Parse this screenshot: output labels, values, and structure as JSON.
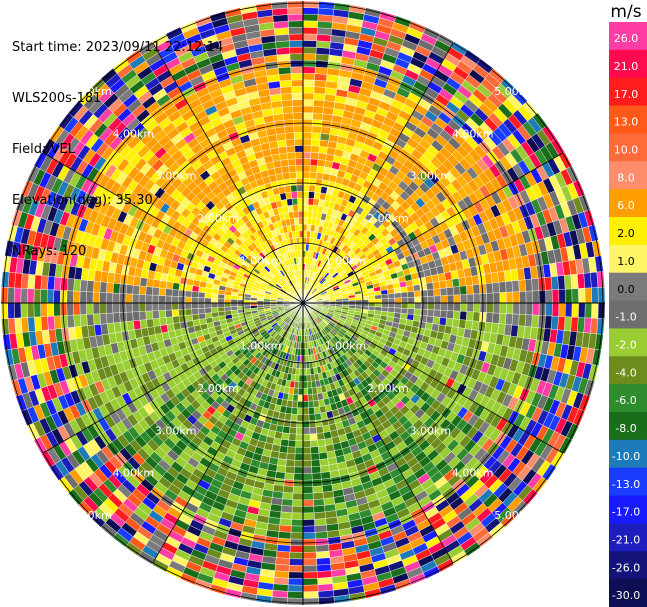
{
  "header": {
    "start_time": "Start time: 2023/09/11 22:12:14",
    "instrument": "WLS200s-181",
    "field": "Field: VEL",
    "elevation": "Elevation(deg): 35.30",
    "nrays": "NRays: 120"
  },
  "chart_data": {
    "type": "ppi-polar",
    "field": "VEL",
    "units": "m/s",
    "nrays": 120,
    "range_rings_km": [
      1.0,
      2.0,
      3.0,
      4.0,
      5.0
    ],
    "ring_labels": [
      "1.00km",
      "2.00km",
      "3.00km",
      "4.00km",
      "5.00km"
    ],
    "colorbar": {
      "label": "m/s",
      "ticks": [
        "26.0",
        "21.0",
        "17.0",
        "13.0",
        "10.0",
        "8.0",
        "6.0",
        "2.0",
        "1.0",
        "0.0",
        "-1.0",
        "-2.0",
        "-4.0",
        "-6.0",
        "-8.0",
        "-10.0",
        "-13.0",
        "-17.0",
        "-21.0",
        "-26.0",
        "-30.0"
      ],
      "colors": [
        "#ff3da5",
        "#ff0a4f",
        "#ff1c1c",
        "#ff5a1a",
        "#ff6a3a",
        "#ff8c6a",
        "#ff9e00",
        "#ffef00",
        "#fff566",
        "#7b7b7b",
        "#6e6e6e",
        "#9acd32",
        "#6e8b1e",
        "#2e8b2e",
        "#1a6e1a",
        "#1e7ab8",
        "#1a3cff",
        "#1a1aff",
        "#1e1ebf",
        "#141478",
        "#0e0e55"
      ]
    }
  }
}
